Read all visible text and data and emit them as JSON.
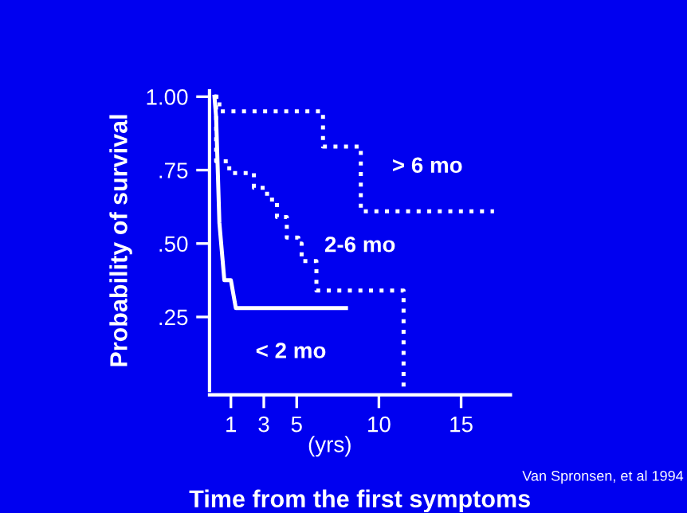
{
  "chart_data": {
    "type": "step",
    "xlabel": "Time from the first symptoms",
    "ylabel": "Probability of survival",
    "xlim": [
      -0.3,
      18
    ],
    "ylim": [
      0,
      1.02
    ],
    "xticks": [
      1,
      3,
      5,
      10,
      15
    ],
    "yticks": [
      {
        "value": 0.25,
        "label": ".25"
      },
      {
        "value": 0.5,
        "label": ".50"
      },
      {
        "value": 0.75,
        "label": ".75"
      },
      {
        "value": 1.0,
        "label": "1.00"
      }
    ],
    "grid": false,
    "legend": false,
    "marker": "none",
    "series": [
      {
        "name": "> 6 mo",
        "color": "#ffffff",
        "line_style": "dotted",
        "x": [
          0,
          0.3,
          6.6,
          8.9,
          17
        ],
        "values": [
          1.0,
          0.95,
          0.83,
          0.61,
          0.61
        ]
      },
      {
        "name": "2-6 mo",
        "color": "#ffffff",
        "line_style": "dotted",
        "x": [
          0,
          0.1,
          0.9,
          2.4,
          3.2,
          3.8,
          4.4,
          5.1,
          5.3,
          6.2,
          11.5
        ],
        "values": [
          1.0,
          0.78,
          0.74,
          0.69,
          0.65,
          0.59,
          0.52,
          0.5,
          0.44,
          0.34,
          0
        ]
      },
      {
        "name": "< 2 mo",
        "color": "#ffffff",
        "type": "line",
        "line_style": "solid",
        "x": [
          0,
          0.1,
          0.3,
          0.6,
          1.0,
          1.3,
          8.0
        ],
        "values": [
          1.0,
          0.93,
          0.57,
          0.375,
          0.375,
          0.28,
          0.28
        ]
      }
    ],
    "annotations": [
      "(yrs)",
      "Van Spronsen, et al 1994"
    ]
  }
}
